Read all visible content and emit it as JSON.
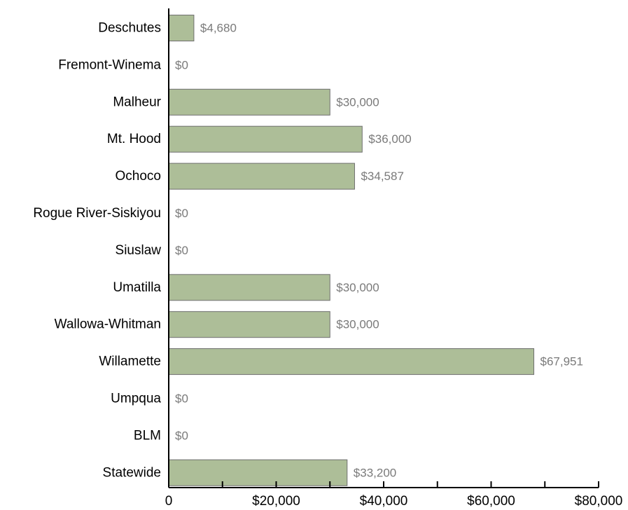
{
  "chart_data": {
    "type": "bar",
    "orientation": "horizontal",
    "categories": [
      "Deschutes",
      "Fremont-Winema",
      "Malheur",
      "Mt. Hood",
      "Ochoco",
      "Rogue River-Siskiyou",
      "Siuslaw",
      "Umatilla",
      "Wallowa-Whitman",
      "Willamette",
      "Umpqua",
      "BLM",
      "Statewide"
    ],
    "values": [
      4680,
      0,
      30000,
      36000,
      34587,
      0,
      0,
      30000,
      30000,
      67951,
      0,
      0,
      33200
    ],
    "value_labels": [
      "$4,680",
      "$0",
      "$30,000",
      "$36,000",
      "$34,587",
      "$0",
      "$0",
      "$30,000",
      "$30,000",
      "$67,951",
      "$0",
      "$0",
      "$33,200"
    ],
    "xlim": [
      0,
      80000
    ],
    "x_ticks": [
      0,
      20000,
      40000,
      60000,
      80000
    ],
    "x_tick_labels": [
      "0",
      "$20,000",
      "$40,000",
      "$60,000",
      "$80,000"
    ],
    "title": "",
    "xlabel": "",
    "ylabel": "",
    "grid": false,
    "legend": "none",
    "bar_color": "#adbe98",
    "bar_edge_color": "#6f6f6f"
  }
}
